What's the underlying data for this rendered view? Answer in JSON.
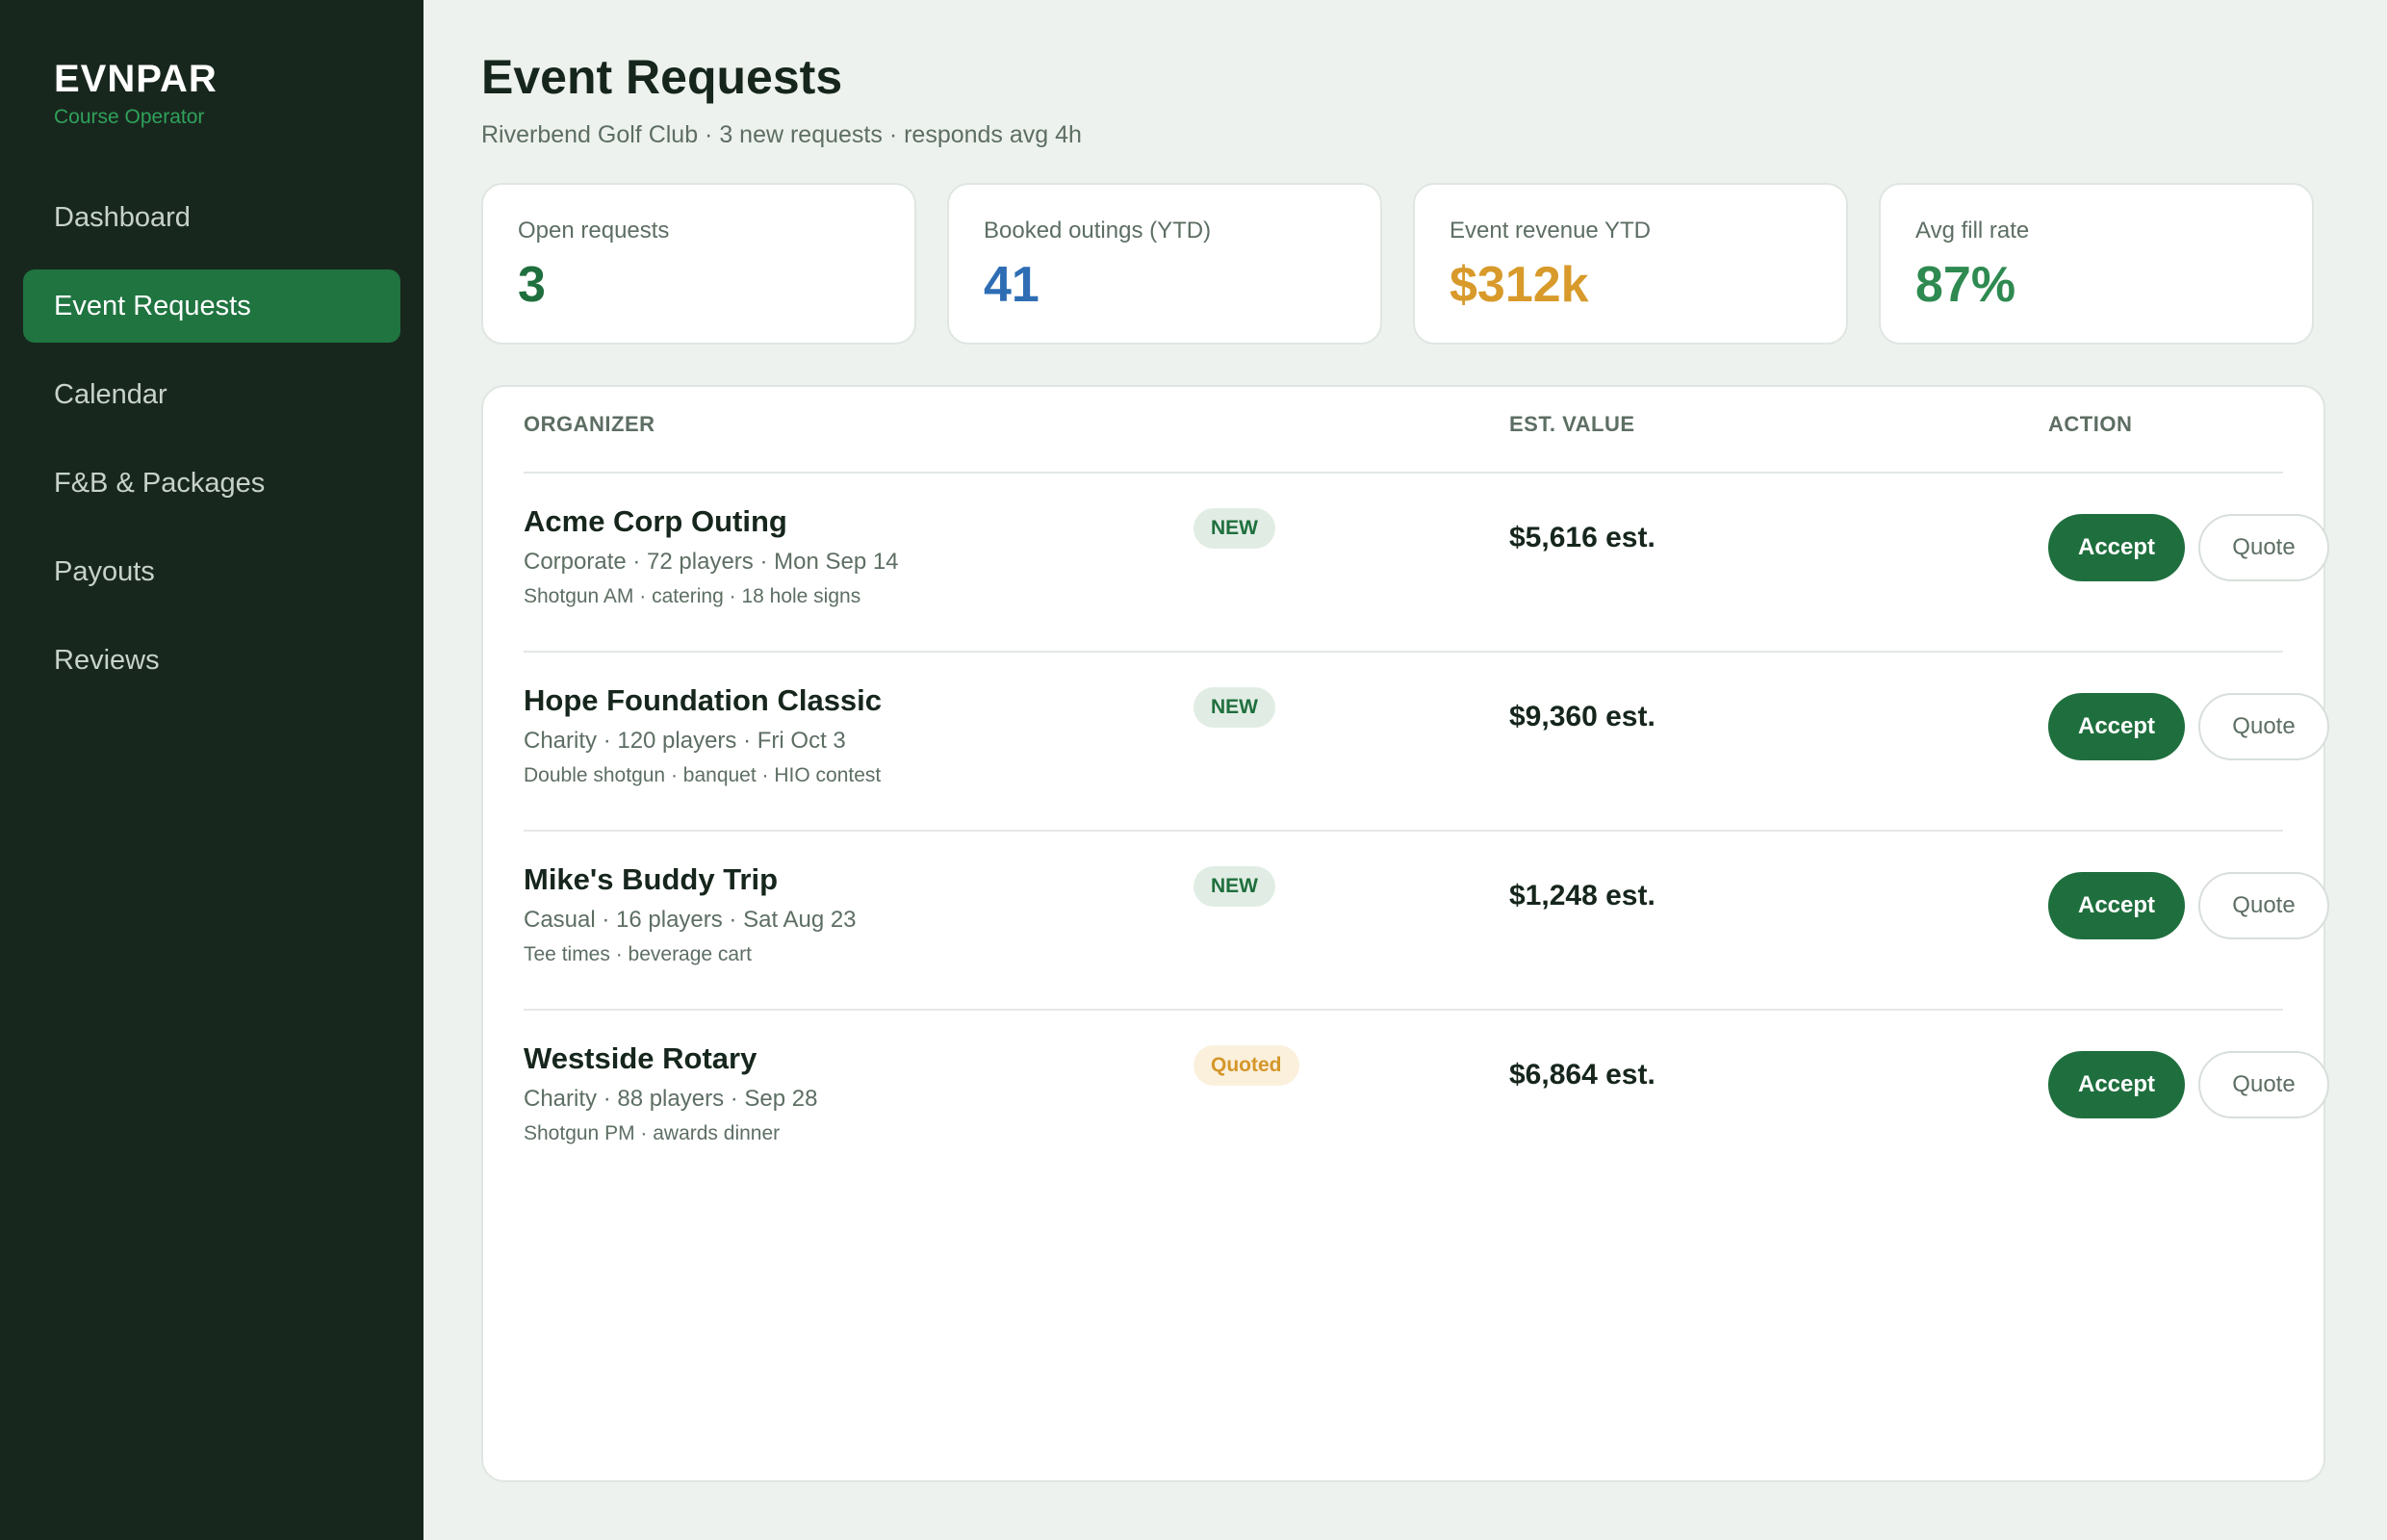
{
  "app": {
    "brand_name": "EVNPAR",
    "brand_sub": "Course Operator"
  },
  "sidebar": {
    "items": [
      {
        "label": "Dashboard"
      },
      {
        "label": "Event Requests",
        "active": true
      },
      {
        "label": "Calendar"
      },
      {
        "label": "F&B & Packages"
      },
      {
        "label": "Payouts"
      },
      {
        "label": "Reviews"
      }
    ]
  },
  "header": {
    "title": "Event Requests",
    "subtitle": "Riverbend Golf Club · 3 new requests · responds avg 4h"
  },
  "stats": [
    {
      "label": "Open requests",
      "value": "3",
      "color": "#1f6f3e"
    },
    {
      "label": "Booked outings (YTD)",
      "value": "41",
      "color": "#2e6db4"
    },
    {
      "label": "Event revenue YTD",
      "value": "$312k",
      "color": "#d89a2a"
    },
    {
      "label": "Avg fill rate",
      "value": "87%",
      "color": "#2e8a50"
    }
  ],
  "table": {
    "headers": {
      "organizer": "ORGANIZER",
      "value": "EST. VALUE",
      "action": "ACTION"
    },
    "rows": [
      {
        "name": "Acme Corp Outing",
        "meta": "Corporate · 72 players · Mon Sep 14",
        "details": "Shotgun AM · catering · 18 hole signs",
        "status": "NEW",
        "status_type": "new",
        "value": "$5,616 est.",
        "accept_label": "Accept",
        "quote_label": "Quote"
      },
      {
        "name": "Hope Foundation Classic",
        "meta": "Charity · 120 players · Fri Oct 3",
        "details": "Double shotgun · banquet · HIO contest",
        "status": "NEW",
        "status_type": "new",
        "value": "$9,360 est.",
        "accept_label": "Accept",
        "quote_label": "Quote"
      },
      {
        "name": "Mike's Buddy Trip",
        "meta": "Casual · 16 players · Sat Aug 23",
        "details": "Tee times · beverage cart",
        "status": "NEW",
        "status_type": "new",
        "value": "$1,248 est.",
        "accept_label": "Accept",
        "quote_label": "Quote"
      },
      {
        "name": "Westside Rotary",
        "meta": "Charity · 88 players · Sep 28",
        "details": "Shotgun PM · awards dinner",
        "status": "Quoted",
        "status_type": "quoted",
        "value": "$6,864 est.",
        "accept_label": "Accept",
        "quote_label": "Quote"
      }
    ]
  }
}
